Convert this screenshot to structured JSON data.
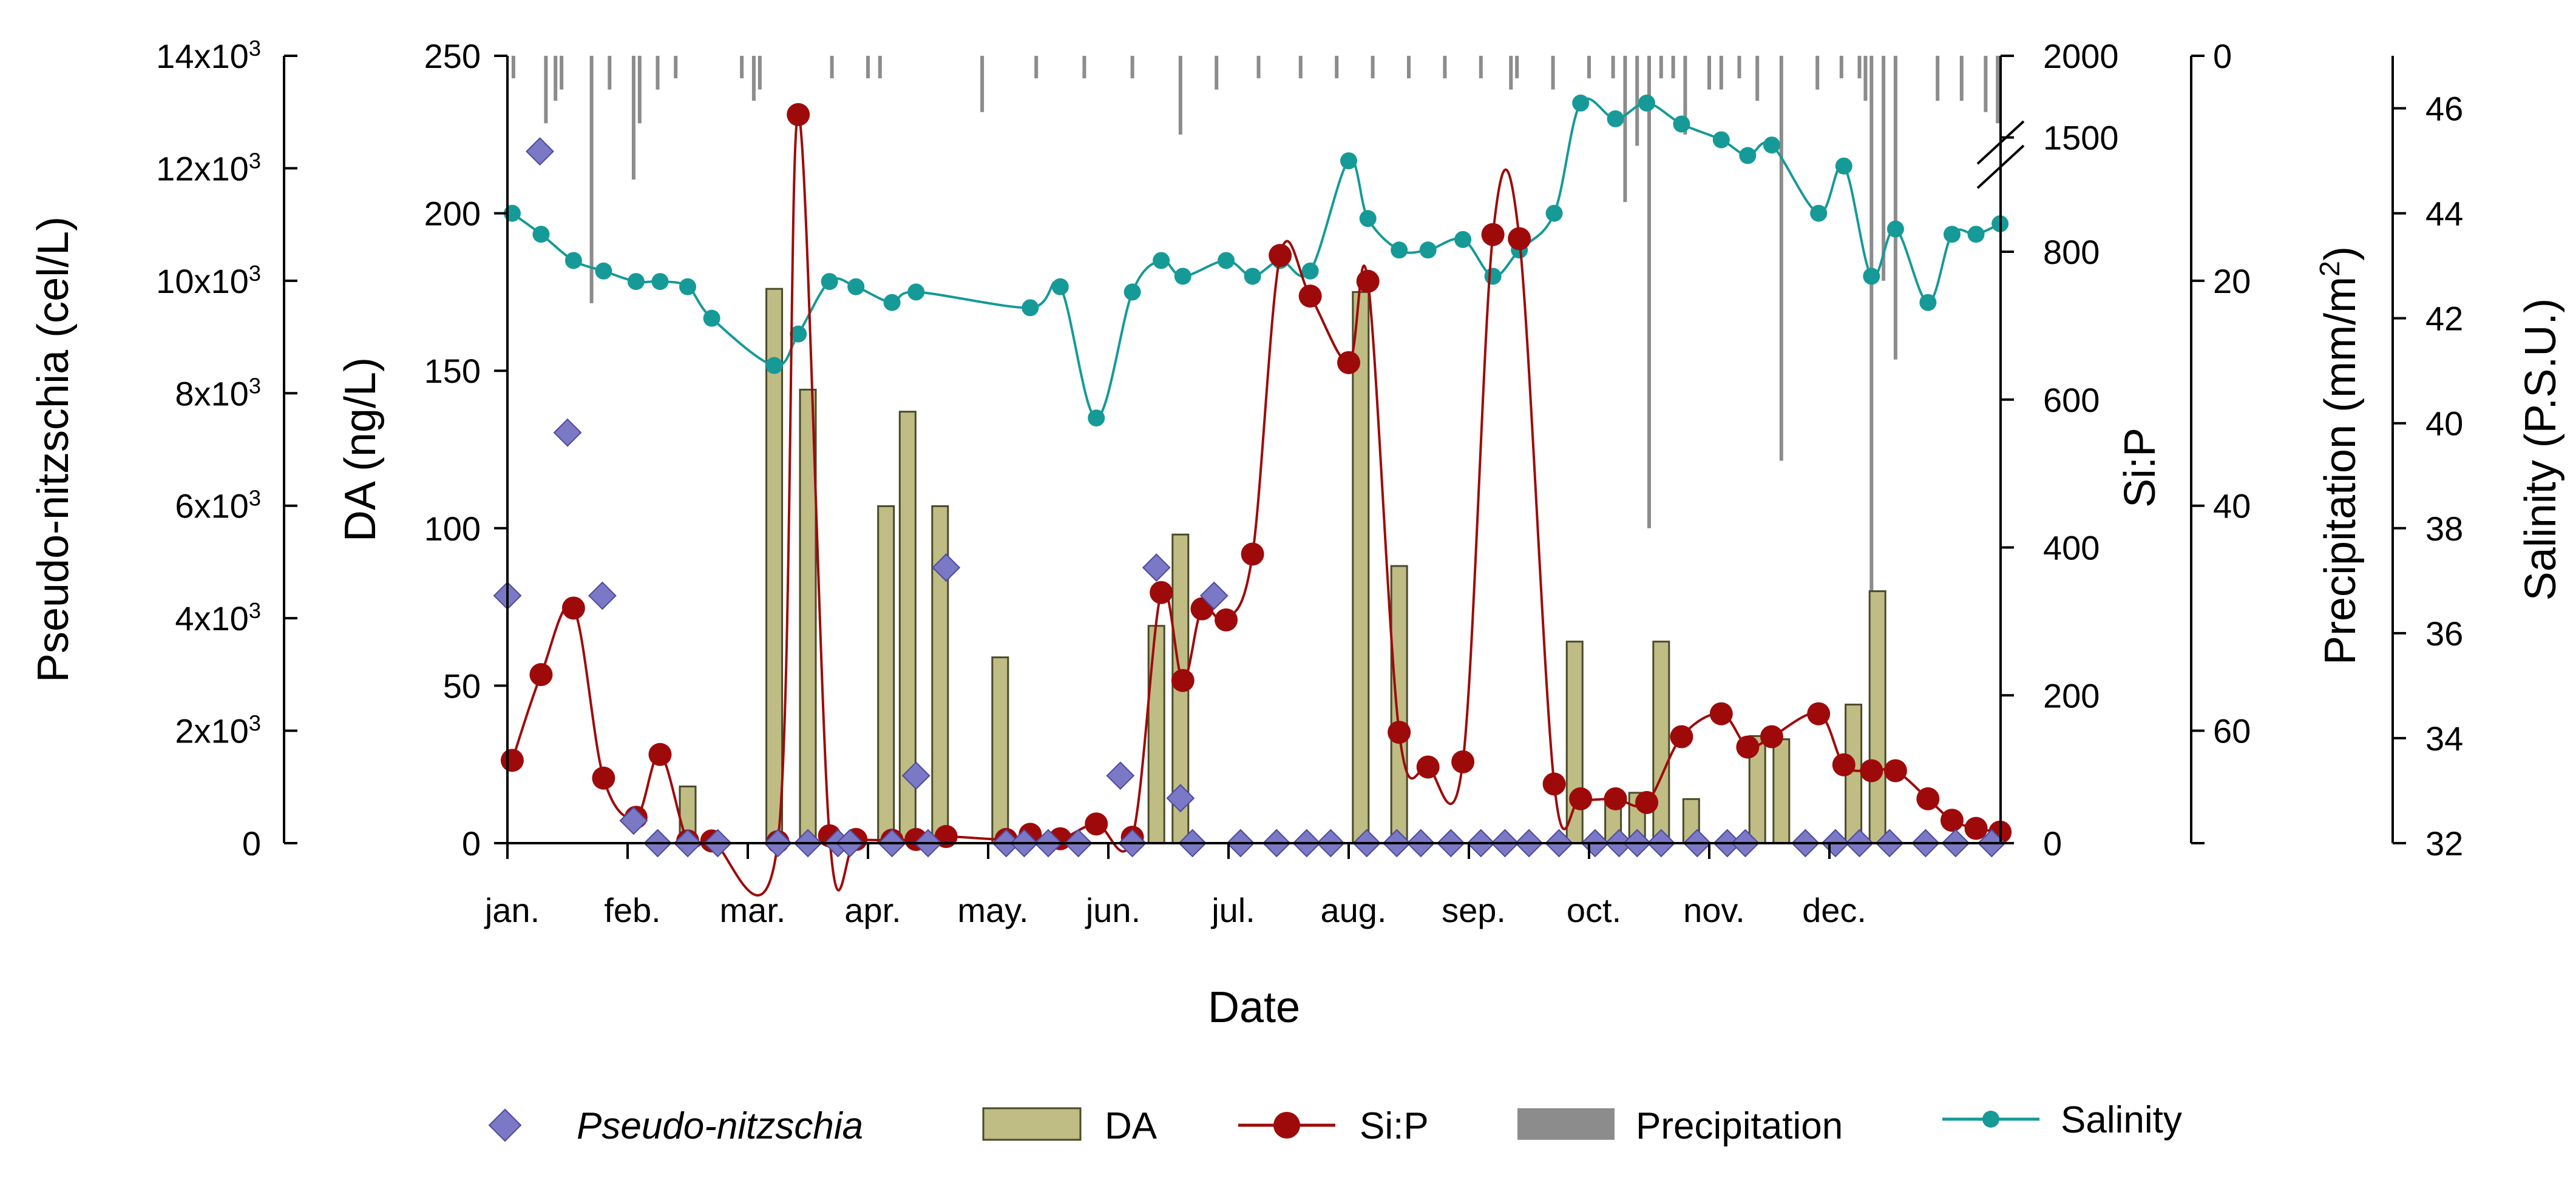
{
  "chart_data": {
    "type": "mixed",
    "xlabel": "Date",
    "months": [
      "jan.",
      "feb.",
      "mar.",
      "apr.",
      "may.",
      "jun.",
      "jul.",
      "aug.",
      "sep.",
      "oct.",
      "nov.",
      "dec."
    ],
    "axes": {
      "pn": {
        "label": "Pseudo-nitzschia (cel/L)",
        "ylim": [
          0,
          14000
        ],
        "ticks": [
          "0",
          "2x10^3",
          "4x10^3",
          "6x10^3",
          "8x10^3",
          "10x10^3",
          "12x10^3",
          "14x10^3"
        ]
      },
      "da": {
        "label": "DA (ng/L)",
        "ylim": [
          0,
          250
        ],
        "ticks": [
          "0",
          "50",
          "100",
          "150",
          "200",
          "250"
        ]
      },
      "sip": {
        "label": "Si:P",
        "ticks": [
          "0",
          "200",
          "400",
          "600",
          "800",
          "1500",
          "2000"
        ]
      },
      "precip": {
        "label": "Precipitation (mm/m^2)",
        "ylim": [
          0,
          70
        ],
        "ticks": [
          "0",
          "20",
          "40",
          "60"
        ],
        "inverted": true
      },
      "salinity": {
        "label": "Salinity (P.S.U.)",
        "ylim": [
          32,
          47
        ],
        "ticks": [
          "32",
          "34",
          "36",
          "38",
          "40",
          "42",
          "44",
          "46"
        ]
      }
    },
    "legend": {
      "placement": "bottom",
      "items": [
        {
          "label": "Pseudo-nitzschia",
          "italic": true
        },
        {
          "label": "DA"
        },
        {
          "label": "Si:P"
        },
        {
          "label": "Precipitation"
        },
        {
          "label": "Salinity"
        }
      ]
    },
    "colors": {
      "pn": "#7b79c6",
      "pn_edge": "#4d4a9e",
      "da_fill": "#bfbc84",
      "da_edge": "#4a4a2a",
      "sip": "#9e0a0a",
      "precip": "#8c8c8c",
      "salinity": "#159a98"
    },
    "series": {
      "pseudo_nitzschia": {
        "name": "Pseudo-nitzschia",
        "x": [
          0,
          0.27,
          0.5,
          0.79,
          1.05,
          1.25,
          1.5,
          1.75,
          2.25,
          2.5,
          2.75,
          2.85,
          3.2,
          3.4,
          3.5,
          3.65,
          4.15,
          4.3,
          4.5,
          4.75,
          5.1,
          5.2,
          5.4,
          5.6,
          5.7,
          5.88,
          6.1,
          6.4,
          6.65,
          6.85,
          7.15,
          7.4,
          7.6,
          7.85,
          8.1,
          8.3,
          8.5,
          8.75,
          9.05,
          9.25,
          9.4,
          9.6,
          9.9,
          10.15,
          10.3,
          10.8,
          11.05,
          11.25,
          11.5,
          11.8,
          12.05,
          12.35
        ],
        "y": [
          4400,
          12300,
          7300,
          4400,
          400,
          0,
          0,
          0,
          0,
          0,
          0,
          0,
          0,
          1200,
          0,
          4900,
          0,
          0,
          0,
          0,
          1200,
          0,
          4900,
          800,
          0,
          4400,
          0,
          0,
          0,
          0,
          0,
          0,
          0,
          0,
          0,
          0,
          0,
          0,
          0,
          0,
          0,
          0,
          0,
          0,
          0,
          0,
          0,
          0,
          0,
          0,
          0,
          0
        ]
      },
      "da": {
        "name": "DA",
        "x": [
          1.5,
          2.22,
          2.5,
          3.15,
          3.33,
          3.6,
          4.1,
          5.4,
          5.6,
          7.1,
          7.42,
          8.88,
          9.2,
          9.4,
          9.6,
          9.85,
          10.4,
          10.6,
          11.2,
          11.4
        ],
        "y": [
          18,
          176,
          144,
          107,
          137,
          107,
          59,
          69,
          98,
          175,
          88,
          64,
          13,
          16,
          64,
          14,
          34,
          33,
          44,
          80
        ]
      },
      "si_p": {
        "name": "Si:P",
        "x": [
          0.04,
          0.28,
          0.55,
          0.8,
          1.07,
          1.27,
          1.5,
          1.7,
          2.25,
          2.42,
          2.68,
          2.9,
          3.2,
          3.4,
          3.65,
          4.15,
          4.35,
          4.6,
          4.9,
          5.2,
          5.44,
          5.62,
          5.78,
          5.98,
          6.2,
          6.43,
          6.68,
          7.0,
          7.16,
          7.42,
          7.66,
          7.95,
          8.2,
          8.42,
          8.71,
          8.93,
          9.22,
          9.48,
          9.77,
          10.1,
          10.32,
          10.52,
          10.91,
          11.12,
          11.35,
          11.55,
          11.82,
          12.02,
          12.22,
          12.42
        ],
        "y": [
          112,
          228,
          318,
          88,
          35,
          120,
          3,
          3,
          2,
          1640,
          10,
          5,
          4,
          5,
          9,
          5,
          12,
          6,
          26,
          8,
          339,
          220,
          317,
          302,
          391,
          795,
          740,
          650,
          760,
          150,
          103,
          110,
          905,
          880,
          80,
          60,
          60,
          55,
          144,
          175,
          130,
          144,
          175,
          106,
          98,
          98,
          60,
          31,
          20,
          15
        ]
      },
      "precipitation": {
        "name": "Precipitation",
        "x": [
          0.05,
          0.32,
          0.4,
          0.45,
          0.7,
          0.85,
          1.05,
          1.1,
          1.25,
          1.4,
          1.95,
          2.05,
          2.1,
          2.7,
          3.0,
          3.1,
          3.95,
          4.4,
          4.8,
          5.2,
          5.6,
          5.9,
          6.25,
          6.6,
          6.9,
          7.2,
          7.5,
          7.8,
          8.1,
          8.35,
          8.4,
          8.7,
          9.0,
          9.2,
          9.3,
          9.4,
          9.5,
          9.6,
          9.7,
          9.8,
          10.0,
          10.1,
          10.25,
          10.4,
          10.6,
          10.9,
          11.1,
          11.25,
          11.3,
          11.35,
          11.45,
          11.55,
          11.9,
          12.1,
          12.3,
          12.4
        ],
        "y": [
          2,
          6,
          4,
          3,
          22,
          3,
          11,
          6,
          3,
          2,
          2,
          4,
          3,
          2,
          2,
          2,
          5,
          2,
          2,
          2,
          7,
          3,
          2,
          2,
          2,
          2,
          2,
          2,
          2,
          3,
          2,
          3,
          2,
          2,
          13,
          8,
          42,
          2,
          2,
          7,
          3,
          3,
          2,
          4,
          36,
          3,
          2,
          2,
          4,
          50,
          20,
          27,
          4,
          4,
          5,
          6
        ]
      },
      "salinity": {
        "name": "Salinity",
        "x": [
          0.04,
          0.28,
          0.55,
          0.8,
          1.07,
          1.27,
          1.5,
          1.7,
          2.22,
          2.42,
          2.68,
          2.9,
          3.2,
          3.4,
          4.35,
          4.6,
          4.9,
          5.2,
          5.44,
          5.62,
          5.98,
          6.2,
          6.43,
          6.68,
          7.0,
          7.16,
          7.42,
          7.66,
          7.95,
          8.2,
          8.42,
          8.71,
          8.93,
          9.22,
          9.48,
          9.77,
          10.1,
          10.32,
          10.52,
          10.91,
          11.12,
          11.35,
          11.55,
          11.82,
          12.02,
          12.22,
          12.42
        ],
        "y": [
          44.0,
          43.6,
          43.1,
          42.9,
          42.7,
          42.7,
          42.6,
          42.0,
          41.1,
          41.7,
          42.7,
          42.6,
          42.3,
          42.5,
          42.2,
          42.6,
          40.1,
          42.5,
          43.1,
          42.8,
          43.1,
          42.8,
          43.1,
          42.9,
          45.0,
          43.9,
          43.3,
          43.3,
          43.5,
          42.8,
          43.3,
          44.0,
          46.1,
          45.8,
          46.1,
          45.7,
          45.4,
          45.1,
          45.3,
          44.0,
          44.9,
          42.8,
          43.7,
          42.3,
          43.6,
          43.6,
          43.8
        ]
      }
    }
  }
}
